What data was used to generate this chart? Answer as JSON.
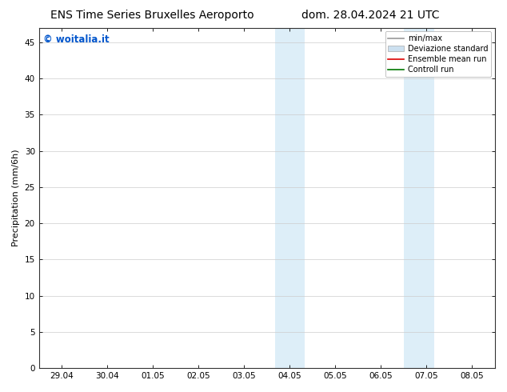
{
  "title_left": "ENS Time Series Bruxelles Aeroporto",
  "title_right": "dom. 28.04.2024 21 UTC",
  "ylabel": "Precipitation (mm/6h)",
  "watermark": "© woitalia.it",
  "watermark_color": "#0055cc",
  "ylim": [
    0,
    47
  ],
  "yticks": [
    0,
    5,
    10,
    15,
    20,
    25,
    30,
    35,
    40,
    45
  ],
  "xtick_labels": [
    "29.04",
    "30.04",
    "01.05",
    "02.05",
    "03.05",
    "04.05",
    "05.05",
    "06.05",
    "07.05",
    "08.05"
  ],
  "xtick_positions": [
    0,
    1,
    2,
    3,
    4,
    5,
    6,
    7,
    8,
    9
  ],
  "shaded_regions": [
    {
      "x_start": 4.67,
      "x_end": 5.0
    },
    {
      "x_start": 5.0,
      "x_end": 5.33
    },
    {
      "x_start": 7.5,
      "x_end": 7.83
    },
    {
      "x_start": 7.83,
      "x_end": 8.17
    }
  ],
  "shade_color": "#ddeef8",
  "legend_entries": [
    {
      "label": "min/max",
      "type": "line",
      "color": "#999999",
      "lw": 1.2
    },
    {
      "label": "Deviazione standard",
      "type": "patch",
      "color": "#cce0f0"
    },
    {
      "label": "Ensemble mean run",
      "type": "line",
      "color": "#dd0000",
      "lw": 1.2
    },
    {
      "label": "Controll run",
      "type": "line",
      "color": "#007700",
      "lw": 1.2
    }
  ],
  "bg_color": "#ffffff",
  "grid_color": "#cccccc",
  "title_fontsize": 10,
  "tick_fontsize": 7.5,
  "ylabel_fontsize": 8,
  "legend_fontsize": 7
}
